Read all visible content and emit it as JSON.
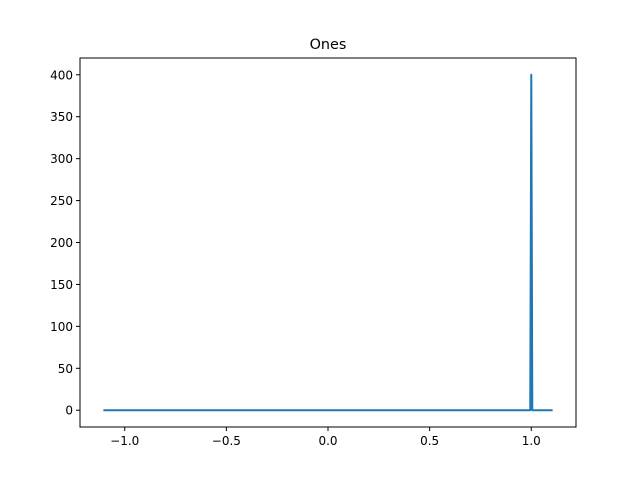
{
  "chart_data": {
    "type": "line",
    "title": "Ones",
    "xlabel": "",
    "ylabel": "",
    "xlim": [
      -1.22,
      1.22
    ],
    "ylim": [
      -20,
      420
    ],
    "x_ticks": [
      -1.0,
      -0.5,
      0.0,
      0.5,
      1.0
    ],
    "x_tick_labels": [
      "−1.0",
      "−0.5",
      "0.0",
      "0.5",
      "1.0"
    ],
    "y_ticks": [
      0,
      50,
      100,
      150,
      200,
      250,
      300,
      350,
      400
    ],
    "y_tick_labels": [
      "0",
      "50",
      "100",
      "150",
      "200",
      "250",
      "300",
      "350",
      "400"
    ],
    "grid": false,
    "line_color": "#1f77b4",
    "series": [
      {
        "x": [
          -1.1,
          0.99,
          0.995,
          1.0,
          1.005,
          1.01,
          1.1
        ],
        "y": [
          0,
          0,
          0,
          400,
          0,
          0,
          0
        ]
      }
    ]
  }
}
